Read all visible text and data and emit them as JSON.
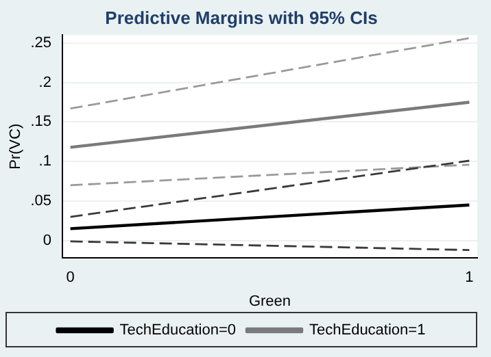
{
  "chart_data": {
    "type": "line",
    "title": "Predictive Margins with 95% CIs",
    "xlabel": "Green",
    "ylabel": "Pr(VC)",
    "x": [
      0,
      1
    ],
    "xlim": [
      -0.02,
      1.02
    ],
    "xticks": [
      0,
      1
    ],
    "ylim": [
      -0.022,
      0.26
    ],
    "yticks": [
      0,
      {
        "value": 0.05,
        "label": ".05"
      },
      {
        "value": 0.1,
        "label": ".1"
      },
      {
        "value": 0.15,
        "label": ".15"
      },
      {
        "value": 0.2,
        "label": ".2"
      },
      {
        "value": 0.25,
        "label": ".25"
      }
    ],
    "grid": "y",
    "legend": "bottom",
    "marker": "none",
    "series": [
      {
        "name": "TechEducation=0",
        "color": "#000000",
        "values": [
          0.015,
          0.045
        ],
        "line_style": "solid"
      },
      {
        "name": "TechEducation=1",
        "color": "#7a7a7a",
        "values": [
          0.118,
          0.175
        ],
        "line_style": "solid"
      },
      {
        "color": "#3a3a3a",
        "values": [
          0.03,
          0.101
        ],
        "line_style": "dashed"
      },
      {
        "color": "#3a3a3a",
        "values": [
          -0.001,
          -0.012
        ],
        "line_style": "dashed"
      },
      {
        "color": "#9a9a9a",
        "values": [
          0.167,
          0.256
        ],
        "line_style": "dashed"
      },
      {
        "color": "#9a9a9a",
        "values": [
          0.07,
          0.096
        ],
        "line_style": "dashed"
      }
    ]
  }
}
